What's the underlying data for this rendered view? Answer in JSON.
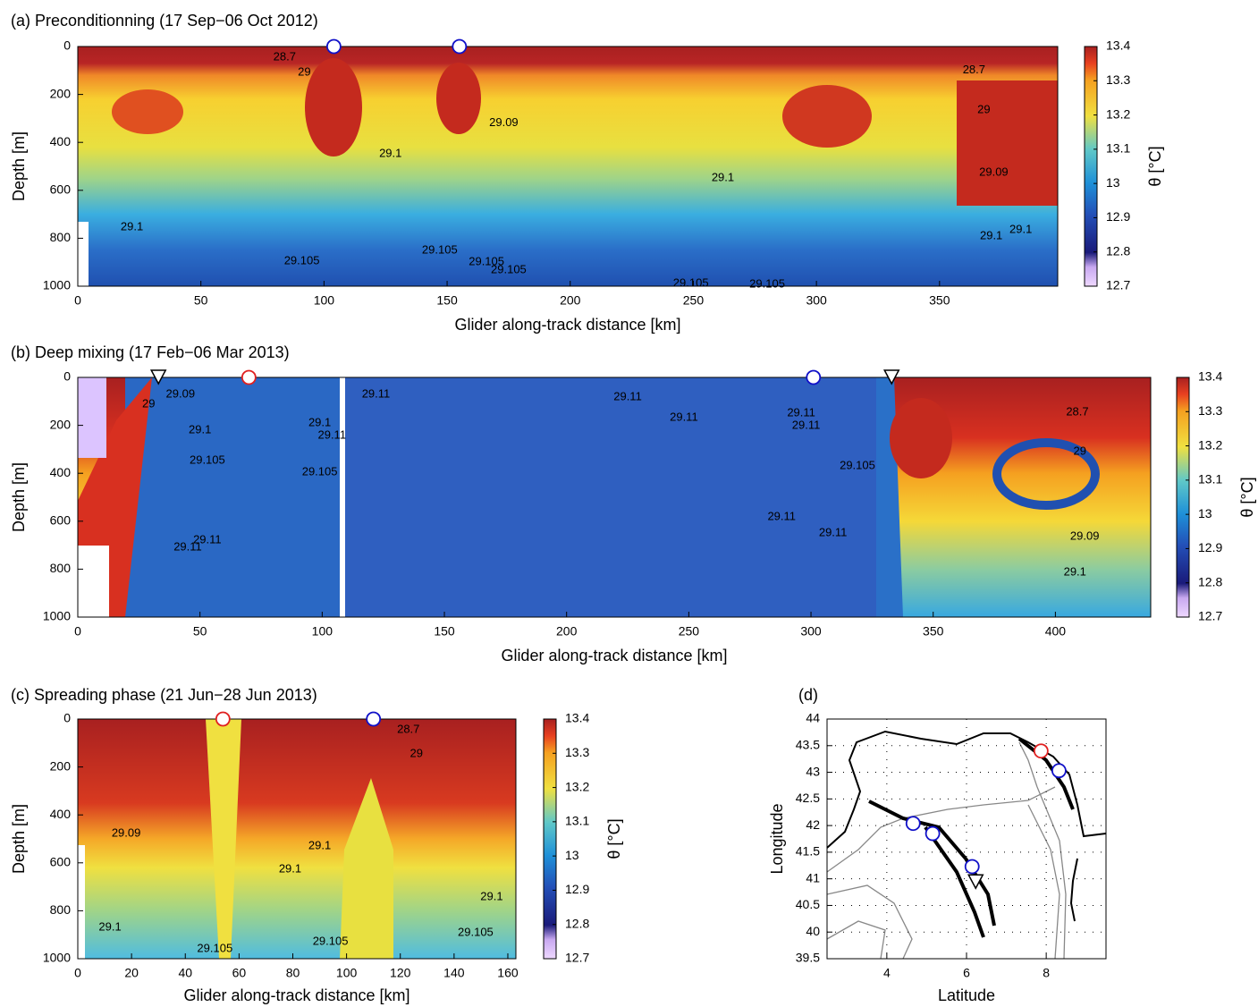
{
  "chart_data": [
    {
      "type": "heatmap",
      "title": "(a) Preconditionning (17 Sep−06 Oct 2012)",
      "x_label": "Glider along-track distance [km]",
      "y_label": "Depth [m]",
      "colorbar_label": "θ [°C]",
      "xlim": [
        0,
        398
      ],
      "ylim": [
        0,
        1000
      ],
      "y_inverted": true,
      "xticks": [
        0,
        50,
        100,
        150,
        200,
        250,
        300,
        350
      ],
      "yticks": [
        0,
        200,
        400,
        600,
        800,
        1000
      ],
      "clim": [
        12.7,
        13.4
      ],
      "cticks": [
        12.7,
        12.8,
        12.9,
        13,
        13.1,
        13.2,
        13.3,
        13.4
      ],
      "annotations": [
        {
          "text": "28.7",
          "x": 84,
          "y": 45
        },
        {
          "text": "29",
          "x": 92,
          "y": 108
        },
        {
          "text": "28.7",
          "x": 364,
          "y": 100
        },
        {
          "text": "29",
          "x": 368,
          "y": 265
        },
        {
          "text": "29.09",
          "x": 173,
          "y": 320
        },
        {
          "text": "29.1",
          "x": 127,
          "y": 448
        },
        {
          "text": "29.1",
          "x": 262,
          "y": 548
        },
        {
          "text": "29.09",
          "x": 372,
          "y": 526
        },
        {
          "text": "29.1",
          "x": 22,
          "y": 754
        },
        {
          "text": "29.1",
          "x": 371,
          "y": 791
        },
        {
          "text": "29.1",
          "x": 383,
          "y": 765
        },
        {
          "text": "29.105",
          "x": 91,
          "y": 896
        },
        {
          "text": "29.105",
          "x": 147,
          "y": 851
        },
        {
          "text": "29.105",
          "x": 166,
          "y": 899
        },
        {
          "text": "29.105",
          "x": 175,
          "y": 933
        },
        {
          "text": "29.105",
          "x": 249,
          "y": 989
        },
        {
          "text": "29.105",
          "x": 280,
          "y": 993
        }
      ],
      "markers": [
        {
          "x": 104,
          "y": 0,
          "shape": "circle",
          "color": "#1010c8"
        },
        {
          "x": 155,
          "y": 0,
          "shape": "circle",
          "color": "#1010c8"
        }
      ]
    },
    {
      "type": "heatmap",
      "title": "(b) Deep mixing (17 Feb−06 Mar 2013)",
      "x_label": "Glider along-track distance [km]",
      "y_label": "Depth [m]",
      "colorbar_label": "θ [°C]",
      "xlim": [
        0,
        439
      ],
      "ylim": [
        0,
        1000
      ],
      "y_inverted": true,
      "xticks": [
        0,
        50,
        100,
        150,
        200,
        250,
        300,
        350,
        400
      ],
      "yticks": [
        0,
        200,
        400,
        600,
        800,
        1000
      ],
      "clim": [
        12.7,
        13.4
      ],
      "cticks": [
        12.7,
        12.8,
        12.9,
        13,
        13.1,
        13.2,
        13.3,
        13.4
      ],
      "annotations": [
        {
          "text": "29",
          "x": 29,
          "y": 112
        },
        {
          "text": "29.09",
          "x": 42,
          "y": 71
        },
        {
          "text": "29.1",
          "x": 50,
          "y": 220
        },
        {
          "text": "29.105",
          "x": 53,
          "y": 347
        },
        {
          "text": "29.11",
          "x": 53,
          "y": 679
        },
        {
          "text": "29.11",
          "x": 45,
          "y": 709
        },
        {
          "text": "29.11",
          "x": 122,
          "y": 71
        },
        {
          "text": "29.1",
          "x": 99,
          "y": 190
        },
        {
          "text": "29.11",
          "x": 104,
          "y": 243
        },
        {
          "text": "29.105",
          "x": 99,
          "y": 396
        },
        {
          "text": "29.11",
          "x": 225,
          "y": 82
        },
        {
          "text": "29.11",
          "x": 248,
          "y": 168
        },
        {
          "text": "29.11",
          "x": 296,
          "y": 149
        },
        {
          "text": "29.11",
          "x": 298,
          "y": 201
        },
        {
          "text": "29.105",
          "x": 319,
          "y": 369
        },
        {
          "text": "29.11",
          "x": 288,
          "y": 582
        },
        {
          "text": "29.11",
          "x": 309,
          "y": 649
        },
        {
          "text": "28.7",
          "x": 409,
          "y": 146
        },
        {
          "text": "29",
          "x": 410,
          "y": 310
        },
        {
          "text": "29.09",
          "x": 412,
          "y": 664
        },
        {
          "text": "29.1",
          "x": 408,
          "y": 813
        }
      ],
      "markers": [
        {
          "x": 33,
          "y": 0,
          "shape": "triangle",
          "color": "#000000"
        },
        {
          "x": 70,
          "y": 0,
          "shape": "circle",
          "color": "#e02020"
        },
        {
          "x": 301,
          "y": 0,
          "shape": "circle",
          "color": "#1010c8"
        },
        {
          "x": 333,
          "y": 0,
          "shape": "triangle",
          "color": "#000000"
        }
      ]
    },
    {
      "type": "heatmap",
      "title": "(c) Spreading phase (21 Jun−28 Jun 2013)",
      "x_label": "Glider along-track distance [km]",
      "y_label": "Depth [m]",
      "colorbar_label": "θ [°C]",
      "xlim": [
        0,
        163
      ],
      "ylim": [
        0,
        1000
      ],
      "y_inverted": true,
      "xticks": [
        0,
        20,
        40,
        60,
        80,
        100,
        120,
        140,
        160
      ],
      "yticks": [
        0,
        200,
        400,
        600,
        800,
        1000
      ],
      "clim": [
        12.7,
        13.4
      ],
      "cticks": [
        12.7,
        12.8,
        12.9,
        13,
        13.1,
        13.2,
        13.3,
        13.4
      ],
      "annotations": [
        {
          "text": "28.7",
          "x": 123,
          "y": 45
        },
        {
          "text": "29",
          "x": 126,
          "y": 146
        },
        {
          "text": "29.09",
          "x": 18,
          "y": 478
        },
        {
          "text": "29.1",
          "x": 90,
          "y": 530
        },
        {
          "text": "29.1",
          "x": 79,
          "y": 627
        },
        {
          "text": "29.1",
          "x": 154,
          "y": 743
        },
        {
          "text": "29.1",
          "x": 12,
          "y": 869
        },
        {
          "text": "29.105",
          "x": 148,
          "y": 892
        },
        {
          "text": "29.105",
          "x": 94,
          "y": 929
        },
        {
          "text": "29.105",
          "x": 51,
          "y": 959
        }
      ],
      "markers": [
        {
          "x": 54,
          "y": 0,
          "shape": "circle",
          "color": "#e02020"
        },
        {
          "x": 110,
          "y": 0,
          "shape": "circle",
          "color": "#1010c8"
        }
      ]
    },
    {
      "type": "map",
      "title": "(d)",
      "x_label": "Latitude",
      "y_label": "Longitude",
      "xlim": [
        2.5,
        9.5
      ],
      "ylim": [
        39.5,
        44
      ],
      "y_inverted": false,
      "xticks": [
        4,
        6,
        8
      ],
      "yticks": [
        39.5,
        40,
        40.5,
        41,
        41.5,
        42,
        42.5,
        43,
        43.5,
        44
      ],
      "markers": [
        {
          "x": 7.87,
          "y": 43.4,
          "shape": "circle",
          "color": "#e02020"
        },
        {
          "x": 8.32,
          "y": 43.03,
          "shape": "circle",
          "color": "#1010c8"
        },
        {
          "x": 4.66,
          "y": 42.04,
          "shape": "circle",
          "color": "#1010c8"
        },
        {
          "x": 5.15,
          "y": 41.85,
          "shape": "circle",
          "color": "#1010c8"
        },
        {
          "x": 6.14,
          "y": 41.23,
          "shape": "circle",
          "color": "#1010c8"
        },
        {
          "x": 6.23,
          "y": 40.94,
          "shape": "triangle",
          "color": "#000000"
        }
      ]
    }
  ]
}
